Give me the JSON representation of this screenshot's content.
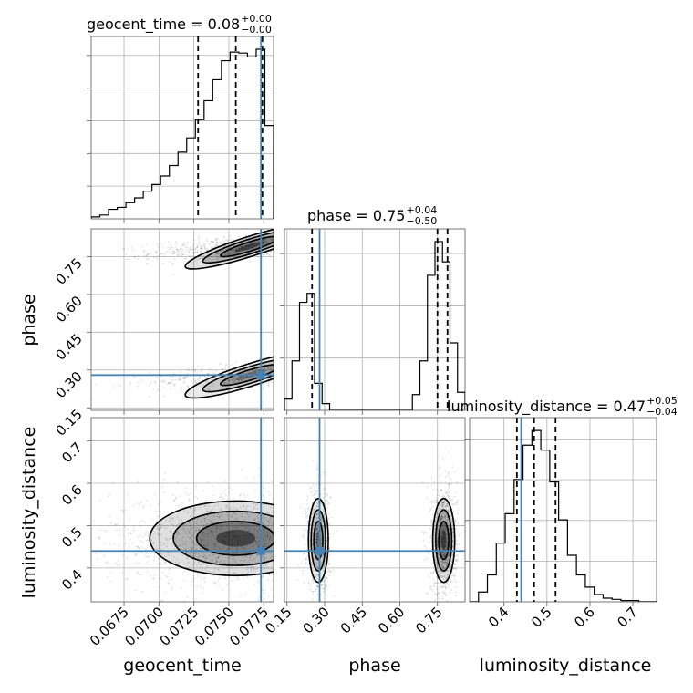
{
  "chart_data": {
    "type": "corner",
    "parameters": [
      "geocent_time",
      "phase",
      "luminosity_distance"
    ],
    "titles": [
      {
        "param": "geocent_time",
        "text": "geocent_time = 0.08",
        "sup": "+0.00",
        "sub": "−0.00"
      },
      {
        "param": "phase",
        "text": "phase = 0.75",
        "sup": "+0.04",
        "sub": "−0.50"
      },
      {
        "param": "luminosity_distance",
        "text": "luminosity_distance = 0.47",
        "sup": "+0.05",
        "sub": "−0.04"
      }
    ],
    "axis_labels": {
      "geocent_time": "geocent_time",
      "phase": "phase",
      "luminosity_distance": "luminosity_distance"
    },
    "ranges": {
      "geocent_time": [
        0.06515,
        0.0782
      ],
      "phase": [
        0.14,
        0.86
      ],
      "luminosity_distance": [
        0.32,
        0.755
      ]
    },
    "ticks": {
      "geocent_time": [
        "0.0675",
        "0.0700",
        "0.0725",
        "0.0750",
        "0.0775"
      ],
      "phase": [
        "0.15",
        "0.30",
        "0.45",
        "0.60",
        "0.75"
      ],
      "luminosity_distance": [
        "0.4",
        "0.5",
        "0.6",
        "0.7"
      ]
    },
    "truths": {
      "geocent_time": 0.0773,
      "phase": 0.28,
      "luminosity_distance": 0.44
    },
    "quantiles": {
      "geocent_time": [
        0.0728,
        0.0755,
        0.0774
      ],
      "phase": [
        0.25,
        0.75,
        0.79
      ],
      "luminosity_distance": [
        0.43,
        0.47,
        0.52
      ]
    },
    "histograms": {
      "geocent_time": [
        2,
        4,
        10,
        12,
        17,
        22,
        29,
        36,
        45,
        56,
        70,
        85,
        104,
        124,
        146,
        166,
        175,
        174,
        170,
        178,
        98
      ],
      "phase": [
        5,
        22,
        48,
        52,
        12,
        3,
        0,
        0,
        0,
        0,
        0,
        0,
        0,
        0,
        0,
        0,
        0,
        7,
        22,
        60,
        75,
        66,
        30,
        8
      ],
      "luminosity_distance": [
        0,
        8,
        22,
        48,
        72,
        100,
        128,
        140,
        124,
        98,
        67,
        38,
        22,
        12,
        6,
        3,
        2,
        1,
        1,
        0,
        0
      ]
    },
    "grid": true,
    "grid_ticks": {
      "geocent_time": [
        0.0675,
        0.07,
        0.0725,
        0.075,
        0.0775
      ],
      "phase": [
        0.15,
        0.3,
        0.45,
        0.6,
        0.75
      ],
      "luminosity_distance": [
        0.4,
        0.5,
        0.6,
        0.7
      ]
    },
    "colors": {
      "truth": "#4682b4",
      "hist": "#000000",
      "density": "#000000"
    }
  }
}
